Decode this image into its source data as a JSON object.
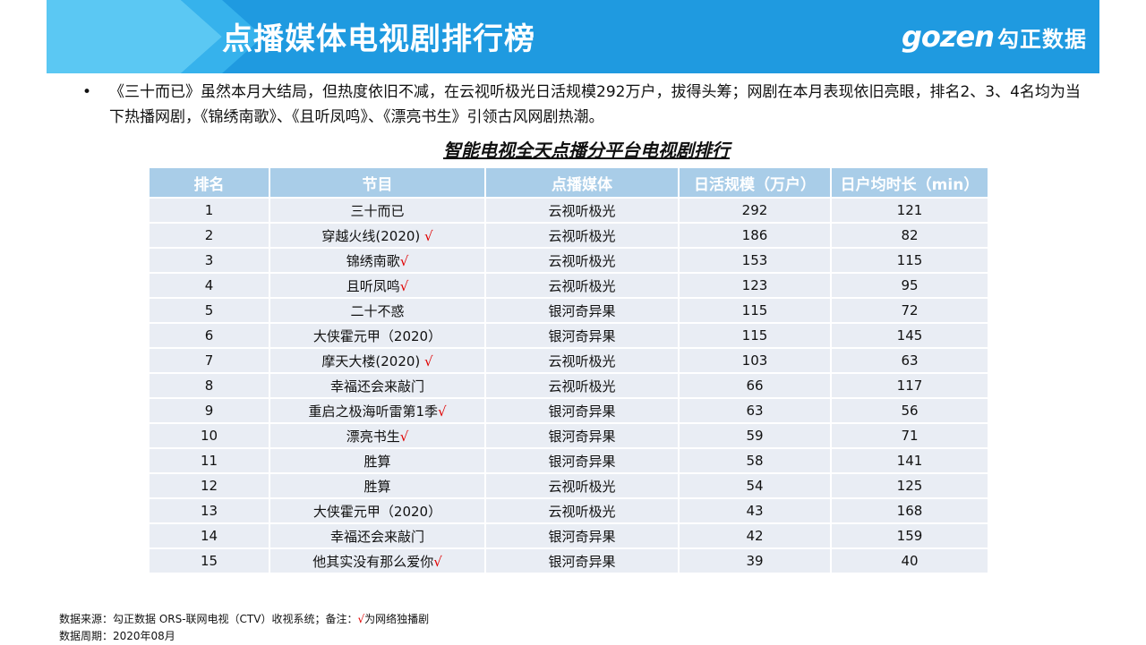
{
  "header": {
    "title": "点播媒体电视剧排行榜",
    "brand_mark": "gozen",
    "brand_cn": "勾正数据"
  },
  "bullet": {
    "text": "《三十而已》虽然本月大结局，但热度依旧不减，在云视听极光日活规模292万户，拔得头筹；网剧在本月表现依旧亮眼，排名2、3、4名均为当下热播网剧，《锦绣南歌》、《且听凤鸣》、《漂亮书生》引领古风网剧热潮。"
  },
  "table": {
    "title": "智能电视全天点播分平台电视剧排行",
    "columns": [
      "排名",
      "节目",
      "点播媒体",
      "日活规模（万户）",
      "日户均时长（min）"
    ],
    "rows": [
      {
        "rank": "1",
        "program": "三十而已",
        "check": "",
        "media": "云视听极光",
        "dau": "292",
        "duration": "121"
      },
      {
        "rank": "2",
        "program": "穿越火线(2020) ",
        "check": "√",
        "media": "云视听极光",
        "dau": "186",
        "duration": "82"
      },
      {
        "rank": "3",
        "program": "锦绣南歌",
        "check": "√",
        "media": "云视听极光",
        "dau": "153",
        "duration": "115"
      },
      {
        "rank": "4",
        "program": "且听凤鸣",
        "check": "√",
        "media": "云视听极光",
        "dau": "123",
        "duration": "95"
      },
      {
        "rank": "5",
        "program": "二十不惑",
        "check": "",
        "media": "银河奇异果",
        "dau": "115",
        "duration": "72"
      },
      {
        "rank": "6",
        "program": "大侠霍元甲（2020）",
        "check": "",
        "media": "银河奇异果",
        "dau": "115",
        "duration": "145"
      },
      {
        "rank": "7",
        "program": "摩天大楼(2020) ",
        "check": "√",
        "media": "云视听极光",
        "dau": "103",
        "duration": "63"
      },
      {
        "rank": "8",
        "program": "幸福还会来敲门",
        "check": "",
        "media": "云视听极光",
        "dau": "66",
        "duration": "117"
      },
      {
        "rank": "9",
        "program": "重启之极海听雷第1季",
        "check": "√",
        "media": "银河奇异果",
        "dau": "63",
        "duration": "56"
      },
      {
        "rank": "10",
        "program": "漂亮书生",
        "check": "√",
        "media": "银河奇异果",
        "dau": "59",
        "duration": "71"
      },
      {
        "rank": "11",
        "program": "胜算",
        "check": "",
        "media": "银河奇异果",
        "dau": "58",
        "duration": "141"
      },
      {
        "rank": "12",
        "program": "胜算",
        "check": "",
        "media": "云视听极光",
        "dau": "54",
        "duration": "125"
      },
      {
        "rank": "13",
        "program": "大侠霍元甲（2020）",
        "check": "",
        "media": "云视听极光",
        "dau": "43",
        "duration": "168"
      },
      {
        "rank": "14",
        "program": "幸福还会来敲门",
        "check": "",
        "media": "银河奇异果",
        "dau": "42",
        "duration": "159"
      },
      {
        "rank": "15",
        "program": "他其实没有那么爱你",
        "check": "√",
        "media": "银河奇异果",
        "dau": "39",
        "duration": "40"
      }
    ]
  },
  "footer": {
    "source_prefix": "数据来源：勾正数据 ORS-联网电视（CTV）收视系统；备注：",
    "check_mark": "√",
    "source_suffix": "为网络独播剧",
    "period": "数据周期：2020年08月"
  },
  "colors": {
    "header_blue": "#1f9ae0",
    "header_light_blue": "#5bc8f3",
    "table_header": "#a9cde8",
    "table_row": "#e9edf4",
    "check_red": "#e00000"
  }
}
